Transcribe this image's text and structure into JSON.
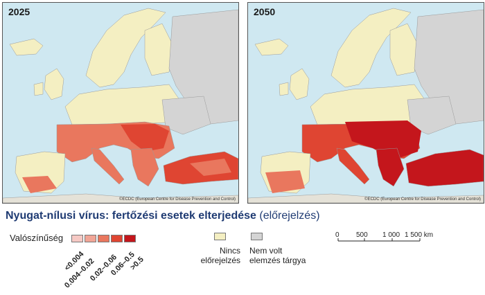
{
  "panels": [
    {
      "year": "2025",
      "credit": "©ECDC (European Centre for Disease Prevention and Control)"
    },
    {
      "year": "2050",
      "credit": "©ECDC (European Centre for Disease Prevention and Control)"
    }
  ],
  "title": {
    "main": "Nyugat-nílusi vírus: fertőzési esetek elterjedése",
    "sub": "(előrejelzés)"
  },
  "legend": {
    "label": "Valószínűség",
    "classes": [
      {
        "range": "<0.004",
        "color": "#f6c9c4"
      },
      {
        "range": "0.004–0.02",
        "color": "#f1a596"
      },
      {
        "range": "0.02–0.06",
        "color": "#e9775e"
      },
      {
        "range": "0.06–0.5",
        "color": "#df4532"
      },
      {
        "range": ">0.5",
        "color": "#c4161c"
      }
    ],
    "no_forecast": {
      "line1": "Nincs",
      "line2": "előrejelzés",
      "color": "#f4efc2"
    },
    "not_analysed": {
      "line1": "Nem volt",
      "line2": "elemzés tárgya",
      "color": "#d4d4d4"
    }
  },
  "scale": {
    "ticks": [
      "0",
      "500",
      "1 000",
      "1 500 km"
    ]
  },
  "colors": {
    "sea": "#cfe8f1",
    "land_no_forecast": "#f4efc2",
    "land_not_analysed": "#d4d4d4"
  }
}
